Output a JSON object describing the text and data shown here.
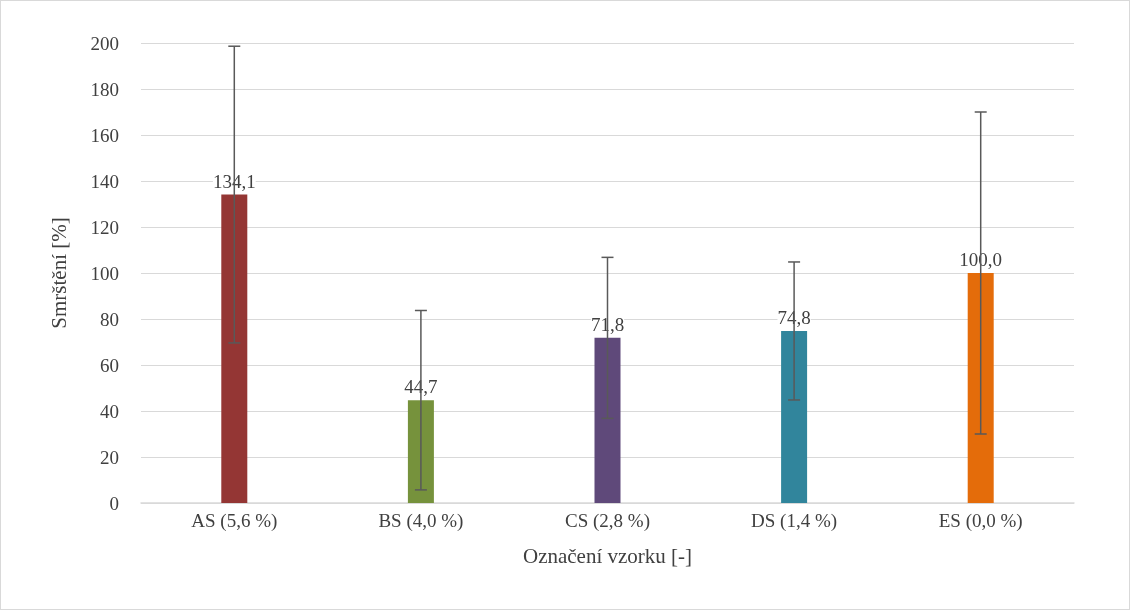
{
  "chart_data": {
    "type": "bar",
    "xlabel": "Označení vzorku [-]",
    "ylabel": "Smrštění [%]",
    "categories": [
      "AS (5,6 %)",
      "BS (4,0 %)",
      "CS (2,8 %)",
      "DS (1,4 %)",
      "ES (0,0 %)"
    ],
    "values": [
      134.1,
      44.7,
      71.8,
      74.8,
      100.0
    ],
    "colors": [
      "#943634",
      "#76923c",
      "#5f497a",
      "#31859c",
      "#e46c0a"
    ],
    "errors": [
      64.5,
      39,
      35,
      30,
      70
    ],
    "value_labels": [
      "134,1",
      "44,7",
      "71,8",
      "74,8",
      "100,0"
    ],
    "ylim": [
      0,
      200
    ],
    "yticks": [
      0,
      20,
      40,
      60,
      80,
      100,
      120,
      140,
      160,
      180,
      200
    ],
    "grid": "y"
  }
}
